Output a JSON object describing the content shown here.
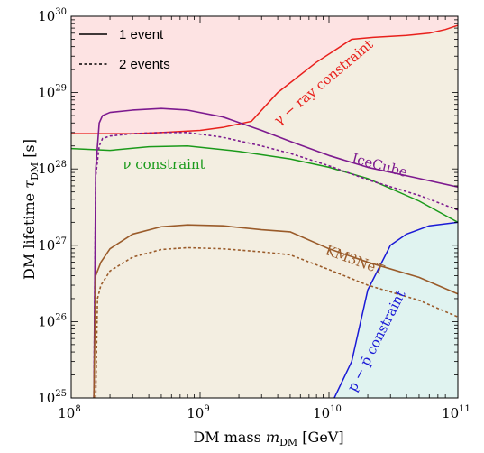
{
  "chart_data": {
    "type": "line",
    "xscale": "log",
    "yscale": "log",
    "xlim": [
      100000000.0,
      100000000000.0
    ],
    "ylim": [
      1e+25,
      1e+30
    ],
    "xlabel": {
      "main": "DM mass ",
      "sym": "m",
      "sub": "DM",
      "unit": " [GeV]"
    },
    "ylabel": {
      "main": "DM lifetime ",
      "sym": "τ",
      "sub": "DM",
      "unit": " [s]"
    },
    "x_ticks": [
      {
        "base": "10",
        "exp": "8",
        "value": 100000000.0
      },
      {
        "base": "10",
        "exp": "9",
        "value": 1000000000.0
      },
      {
        "base": "10",
        "exp": "10",
        "value": 10000000000.0
      },
      {
        "base": "10",
        "exp": "11",
        "value": 100000000000.0
      }
    ],
    "y_ticks": [
      {
        "base": "10",
        "exp": "25",
        "value": 1e+25
      },
      {
        "base": "10",
        "exp": "26",
        "value": 1e+26
      },
      {
        "base": "10",
        "exp": "27",
        "value": 1e+27
      },
      {
        "base": "10",
        "exp": "28",
        "value": 1e+28
      },
      {
        "base": "10",
        "exp": "29",
        "value": 1e+29
      },
      {
        "base": "10",
        "exp": "30",
        "value": 1e+30
      }
    ],
    "legend": {
      "position": "top-left",
      "entries": [
        {
          "label": "1 event",
          "style": "solid"
        },
        {
          "label": "2 events",
          "style": "dashed"
        }
      ]
    },
    "regions": [
      {
        "name": "ν constraint",
        "color": "#f3eee1",
        "edge": "#1a9a1a",
        "boundary": [
          [
            100000000.0,
            1.85e+28
          ],
          [
            200000000.0,
            1.75e+28
          ],
          [
            400000000.0,
            1.95e+28
          ],
          [
            800000000.0,
            2e+28
          ],
          [
            2000000000.0,
            1.7e+28
          ],
          [
            5000000000.0,
            1.35e+28
          ],
          [
            10000000000.0,
            1.05e+28
          ],
          [
            20000000000.0,
            7.5e+27
          ],
          [
            50000000000.0,
            3.8e+27
          ],
          [
            100000000000.0,
            2e+27
          ]
        ]
      },
      {
        "name": "γ − ray constraint",
        "color": "#fde3e3",
        "edge": "#e8201c",
        "boundary": [
          [
            100000000.0,
            2.9e+28
          ],
          [
            300000000.0,
            2.9e+28
          ],
          [
            500000000.0,
            3e+28
          ],
          [
            1000000000.0,
            3.2e+28
          ],
          [
            1500000000.0,
            3.5e+28
          ],
          [
            2500000000.0,
            4.2e+28
          ],
          [
            4000000000.0,
            1e+29
          ],
          [
            8000000000.0,
            2.5e+29
          ],
          [
            15000000000.0,
            5e+29
          ],
          [
            22000000000.0,
            5.3e+29
          ],
          [
            40000000000.0,
            5.6e+29
          ],
          [
            60000000000.0,
            6e+29
          ],
          [
            80000000000.0,
            6.7e+29
          ],
          [
            100000000000.0,
            7.6e+29
          ]
        ]
      },
      {
        "name": "p − p̄ constraint",
        "color": "#e0f3f0",
        "edge": "#1a1ad6",
        "boundary": [
          [
            11000000000.0,
            1e+25
          ],
          [
            15000000000.0,
            3e+25
          ],
          [
            20000000000.0,
            2.6e+26
          ],
          [
            30000000000.0,
            1e+27
          ],
          [
            40000000000.0,
            1.4e+27
          ],
          [
            60000000000.0,
            1.8e+27
          ],
          [
            100000000000.0,
            2e+27
          ]
        ]
      }
    ],
    "series": [
      {
        "name": "IceCube",
        "events": 1,
        "style": "solid",
        "color": "#7d1a8f",
        "x": [
          150000000.0,
          155000000.0,
          165000000.0,
          175000000.0,
          200000000.0,
          300000000.0,
          500000000.0,
          800000000.0,
          1500000000.0,
          3000000000.0,
          5000000000.0,
          10000000000.0,
          20000000000.0,
          50000000000.0,
          100000000000.0
        ],
        "y": [
          1e+25,
          1e+28,
          4e+28,
          5e+28,
          5.5e+28,
          5.9e+28,
          6.2e+28,
          5.9e+28,
          4.8e+28,
          3.2e+28,
          2.3e+28,
          1.5e+28,
          1.05e+28,
          7.5e+27,
          5.8e+27
        ]
      },
      {
        "name": "IceCube",
        "events": 2,
        "style": "dashed",
        "color": "#7d1a8f",
        "x": [
          150000000.0,
          155000000.0,
          165000000.0,
          175000000.0,
          200000000.0,
          300000000.0,
          500000000.0,
          800000000.0,
          1500000000.0,
          3000000000.0,
          5000000000.0,
          10000000000.0,
          20000000000.0,
          50000000000.0,
          100000000000.0
        ],
        "y": [
          1e+25,
          8e+27,
          2e+28,
          2.5e+28,
          2.7e+28,
          2.9e+28,
          3e+28,
          3e+28,
          2.6e+28,
          2e+28,
          1.6e+28,
          1.1e+28,
          7.2e+27,
          4.5e+27,
          2.9e+27
        ]
      },
      {
        "name": "KM3NeT",
        "events": 1,
        "style": "solid",
        "color": "#9a5b2a",
        "x": [
          150000000.0,
          155000000.0,
          170000000.0,
          200000000.0,
          300000000.0,
          500000000.0,
          800000000.0,
          1500000000.0,
          3000000000.0,
          5000000000.0,
          10000000000.0,
          20000000000.0,
          50000000000.0,
          100000000000.0
        ],
        "y": [
          1e+25,
          4e+26,
          6e+26,
          9e+26,
          1.4e+27,
          1.75e+27,
          1.85e+27,
          1.8e+27,
          1.6e+27,
          1.5e+27,
          9e+26,
          6e+26,
          3.8e+26,
          2.3e+26
        ]
      },
      {
        "name": "KM3NeT",
        "events": 2,
        "style": "dashed",
        "color": "#9a5b2a",
        "x": [
          155000000.0,
          160000000.0,
          170000000.0,
          200000000.0,
          300000000.0,
          500000000.0,
          800000000.0,
          1500000000.0,
          3000000000.0,
          5000000000.0,
          10000000000.0,
          20000000000.0,
          50000000000.0,
          100000000000.0
        ],
        "y": [
          1e+25,
          2e+26,
          3e+26,
          4.6e+26,
          7e+26,
          8.8e+26,
          9.3e+26,
          9e+26,
          8.2e+26,
          7.5e+26,
          4.8e+26,
          3e+26,
          1.9e+26,
          1.15e+26
        ]
      }
    ],
    "annotations": [
      {
        "text": "IceCube",
        "color": "#7d1a8f"
      },
      {
        "text": "KM3NeT",
        "color": "#9a5b2a"
      },
      {
        "text": "ν constraint",
        "color": "#1a9a1a"
      },
      {
        "text": "γ − ray constraint",
        "color": "#e8201c"
      },
      {
        "text": "p − p̄ constraint",
        "color": "#1a1ad6"
      }
    ]
  }
}
